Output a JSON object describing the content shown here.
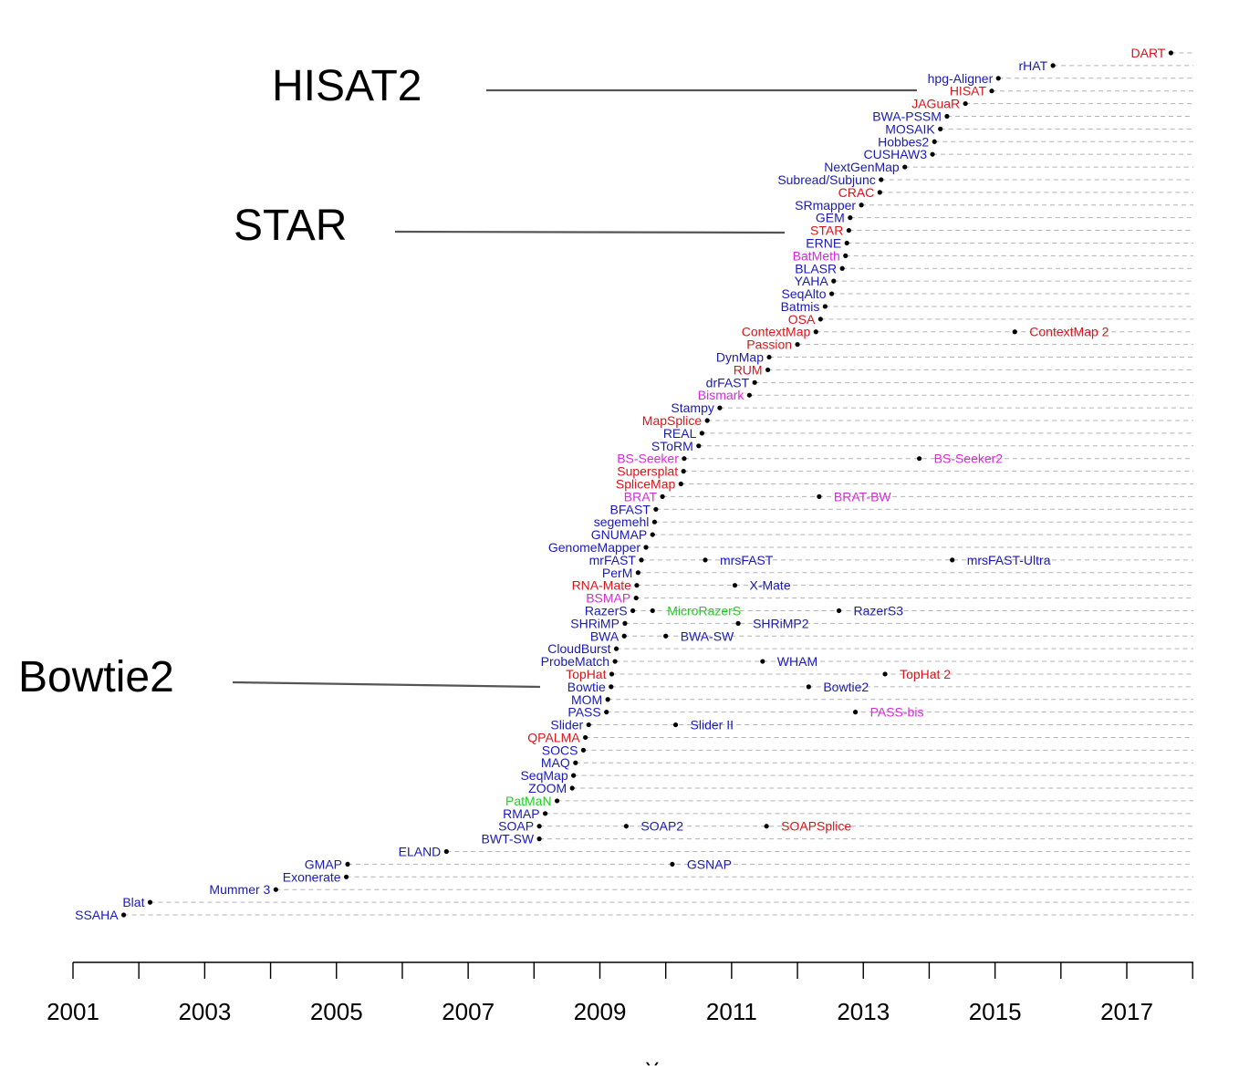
{
  "chart_data": {
    "type": "scatter",
    "title": "",
    "xlabel": "Year",
    "ylabel": "",
    "xlim": [
      2001,
      2018
    ],
    "x_ticks": [
      2001,
      2003,
      2005,
      2007,
      2009,
      2011,
      2013,
      2015,
      2017
    ],
    "grid": false,
    "colors": {
      "dna": "#1a1ab8",
      "rna": "#d9151b",
      "bisulfite": "#d82bd8",
      "microrna": "#22cc22",
      "timeline": "#b3b3b3",
      "pointer": "#555555"
    },
    "highlights": [
      {
        "label": "HISAT2",
        "row": 3
      },
      {
        "label": "STAR",
        "row": 14
      },
      {
        "label": "Bowtie2",
        "row": 50
      }
    ],
    "rows": [
      {
        "tools": [
          {
            "name": "DART",
            "x": 2017.67,
            "category": "rna"
          }
        ]
      },
      {
        "tools": [
          {
            "name": "rHAT",
            "x": 2015.88,
            "category": "dna"
          }
        ]
      },
      {
        "tools": [
          {
            "name": "hpg-Aligner",
            "x": 2015.05,
            "category": "dna"
          }
        ]
      },
      {
        "tools": [
          {
            "name": "HISAT",
            "x": 2014.95,
            "category": "rna"
          }
        ]
      },
      {
        "tools": [
          {
            "name": "JAGuaR",
            "x": 2014.55,
            "category": "rna"
          }
        ]
      },
      {
        "tools": [
          {
            "name": "BWA-PSSM",
            "x": 2014.27,
            "category": "dna"
          }
        ]
      },
      {
        "tools": [
          {
            "name": "MOSAIK",
            "x": 2014.17,
            "category": "dna"
          }
        ]
      },
      {
        "tools": [
          {
            "name": "Hobbes2",
            "x": 2014.08,
            "category": "dna"
          }
        ]
      },
      {
        "tools": [
          {
            "name": "CUSHAW3",
            "x": 2014.05,
            "category": "dna"
          }
        ]
      },
      {
        "tools": [
          {
            "name": "NextGenMap",
            "x": 2013.63,
            "category": "dna"
          }
        ]
      },
      {
        "tools": [
          {
            "name": "Subread/Subjunc",
            "x": 2013.27,
            "category": "dna"
          }
        ]
      },
      {
        "tools": [
          {
            "name": "CRAC",
            "x": 2013.25,
            "category": "rna"
          }
        ]
      },
      {
        "tools": [
          {
            "name": "SRmapper",
            "x": 2012.97,
            "category": "dna"
          }
        ]
      },
      {
        "tools": [
          {
            "name": "GEM",
            "x": 2012.8,
            "category": "dna"
          }
        ]
      },
      {
        "tools": [
          {
            "name": "STAR",
            "x": 2012.78,
            "category": "rna"
          }
        ]
      },
      {
        "tools": [
          {
            "name": "ERNE",
            "x": 2012.75,
            "category": "dna"
          }
        ]
      },
      {
        "tools": [
          {
            "name": "BatMeth",
            "x": 2012.73,
            "category": "bisulfite"
          }
        ]
      },
      {
        "tools": [
          {
            "name": "BLASR",
            "x": 2012.68,
            "category": "dna"
          }
        ]
      },
      {
        "tools": [
          {
            "name": "YAHA",
            "x": 2012.55,
            "category": "dna"
          }
        ]
      },
      {
        "tools": [
          {
            "name": "SeqAlto",
            "x": 2012.52,
            "category": "dna"
          }
        ]
      },
      {
        "tools": [
          {
            "name": "Batmis",
            "x": 2012.42,
            "category": "dna"
          }
        ]
      },
      {
        "tools": [
          {
            "name": "OSA",
            "x": 2012.35,
            "category": "rna"
          }
        ]
      },
      {
        "tools": [
          {
            "name": "ContextMap",
            "x": 2012.28,
            "category": "rna"
          },
          {
            "name": "ContextMap 2",
            "x": 2015.3,
            "category": "rna"
          }
        ]
      },
      {
        "tools": [
          {
            "name": "Passion",
            "x": 2012.0,
            "category": "rna"
          }
        ]
      },
      {
        "tools": [
          {
            "name": "DynMap",
            "x": 2011.57,
            "category": "dna"
          }
        ]
      },
      {
        "tools": [
          {
            "name": "RUM",
            "x": 2011.55,
            "category": "rna"
          }
        ]
      },
      {
        "tools": [
          {
            "name": "drFAST",
            "x": 2011.35,
            "category": "dna"
          }
        ]
      },
      {
        "tools": [
          {
            "name": "Bismark",
            "x": 2011.27,
            "category": "bisulfite"
          }
        ]
      },
      {
        "tools": [
          {
            "name": "Stampy",
            "x": 2010.82,
            "category": "dna"
          }
        ]
      },
      {
        "tools": [
          {
            "name": "MapSplice",
            "x": 2010.63,
            "category": "rna"
          }
        ]
      },
      {
        "tools": [
          {
            "name": "REAL",
            "x": 2010.55,
            "category": "dna"
          }
        ]
      },
      {
        "tools": [
          {
            "name": "SToRM",
            "x": 2010.5,
            "category": "dna"
          }
        ]
      },
      {
        "tools": [
          {
            "name": "BS-Seeker",
            "x": 2010.28,
            "category": "bisulfite"
          },
          {
            "name": "BS-Seeker2",
            "x": 2013.85,
            "category": "bisulfite"
          }
        ]
      },
      {
        "tools": [
          {
            "name": "Supersplat",
            "x": 2010.27,
            "category": "rna"
          }
        ]
      },
      {
        "tools": [
          {
            "name": "SpliceMap",
            "x": 2010.23,
            "category": "rna"
          }
        ]
      },
      {
        "tools": [
          {
            "name": "BRAT",
            "x": 2009.95,
            "category": "bisulfite"
          },
          {
            "name": "BRAT-BW",
            "x": 2012.33,
            "category": "bisulfite"
          }
        ]
      },
      {
        "tools": [
          {
            "name": "BFAST",
            "x": 2009.85,
            "category": "dna"
          }
        ]
      },
      {
        "tools": [
          {
            "name": "segemehl",
            "x": 2009.83,
            "category": "dna"
          }
        ]
      },
      {
        "tools": [
          {
            "name": "GNUMAP",
            "x": 2009.8,
            "category": "dna"
          }
        ]
      },
      {
        "tools": [
          {
            "name": "GenomeMapper",
            "x": 2009.7,
            "category": "dna"
          }
        ]
      },
      {
        "tools": [
          {
            "name": "mrFAST",
            "x": 2009.63,
            "category": "dna"
          },
          {
            "name": "mrsFAST",
            "x": 2010.6,
            "category": "dna"
          },
          {
            "name": "mrsFAST-Ultra",
            "x": 2014.35,
            "category": "dna"
          }
        ]
      },
      {
        "tools": [
          {
            "name": "PerM",
            "x": 2009.58,
            "category": "dna"
          }
        ]
      },
      {
        "tools": [
          {
            "name": "RNA-Mate",
            "x": 2009.56,
            "category": "rna"
          },
          {
            "name": "X-Mate",
            "x": 2011.05,
            "category": "dna"
          }
        ]
      },
      {
        "tools": [
          {
            "name": "BSMAP",
            "x": 2009.55,
            "category": "bisulfite"
          }
        ]
      },
      {
        "tools": [
          {
            "name": "RazerS",
            "x": 2009.5,
            "category": "dna"
          },
          {
            "name": "MicroRazerS",
            "x": 2009.8,
            "category": "microrna"
          },
          {
            "name": "RazerS3",
            "x": 2012.63,
            "category": "dna"
          }
        ]
      },
      {
        "tools": [
          {
            "name": "SHRiMP",
            "x": 2009.38,
            "category": "dna"
          },
          {
            "name": "SHRiMP2",
            "x": 2011.1,
            "category": "dna"
          }
        ]
      },
      {
        "tools": [
          {
            "name": "BWA",
            "x": 2009.37,
            "category": "dna"
          },
          {
            "name": "BWA-SW",
            "x": 2010.0,
            "category": "dna"
          }
        ]
      },
      {
        "tools": [
          {
            "name": "CloudBurst",
            "x": 2009.25,
            "category": "dna"
          }
        ]
      },
      {
        "tools": [
          {
            "name": "ProbeMatch",
            "x": 2009.23,
            "category": "dna"
          },
          {
            "name": "WHAM",
            "x": 2011.47,
            "category": "dna"
          }
        ]
      },
      {
        "tools": [
          {
            "name": "TopHat",
            "x": 2009.18,
            "category": "rna"
          },
          {
            "name": "TopHat 2",
            "x": 2013.33,
            "category": "rna"
          }
        ]
      },
      {
        "tools": [
          {
            "name": "Bowtie",
            "x": 2009.17,
            "category": "dna"
          },
          {
            "name": "Bowtie2",
            "x": 2012.17,
            "category": "dna"
          }
        ]
      },
      {
        "tools": [
          {
            "name": "MOM",
            "x": 2009.12,
            "category": "dna"
          }
        ]
      },
      {
        "tools": [
          {
            "name": "PASS",
            "x": 2009.1,
            "category": "dna"
          },
          {
            "name": "PASS-bis",
            "x": 2012.88,
            "category": "bisulfite"
          }
        ]
      },
      {
        "tools": [
          {
            "name": "Slider",
            "x": 2008.83,
            "category": "dna"
          },
          {
            "name": "Slider II",
            "x": 2010.15,
            "category": "dna"
          }
        ]
      },
      {
        "tools": [
          {
            "name": "QPALMA",
            "x": 2008.78,
            "category": "rna"
          }
        ]
      },
      {
        "tools": [
          {
            "name": "SOCS",
            "x": 2008.75,
            "category": "dna"
          }
        ]
      },
      {
        "tools": [
          {
            "name": "MAQ",
            "x": 2008.63,
            "category": "dna"
          }
        ]
      },
      {
        "tools": [
          {
            "name": "SeqMap",
            "x": 2008.6,
            "category": "dna"
          }
        ]
      },
      {
        "tools": [
          {
            "name": "ZOOM",
            "x": 2008.58,
            "category": "dna"
          }
        ]
      },
      {
        "tools": [
          {
            "name": "PatMaN",
            "x": 2008.35,
            "category": "microrna"
          }
        ]
      },
      {
        "tools": [
          {
            "name": "RMAP",
            "x": 2008.17,
            "category": "dna"
          }
        ]
      },
      {
        "tools": [
          {
            "name": "SOAP",
            "x": 2008.08,
            "category": "dna"
          },
          {
            "name": "SOAP2",
            "x": 2009.4,
            "category": "dna"
          },
          {
            "name": "SOAPSplice",
            "x": 2011.53,
            "category": "rna"
          }
        ]
      },
      {
        "tools": [
          {
            "name": "BWT-SW",
            "x": 2008.08,
            "category": "dna"
          }
        ]
      },
      {
        "tools": [
          {
            "name": "ELAND",
            "x": 2006.67,
            "category": "dna"
          }
        ]
      },
      {
        "tools": [
          {
            "name": "GMAP",
            "x": 2005.17,
            "category": "dna"
          },
          {
            "name": "GSNAP",
            "x": 2010.1,
            "category": "dna"
          }
        ]
      },
      {
        "tools": [
          {
            "name": "Exonerate",
            "x": 2005.15,
            "category": "dna"
          }
        ]
      },
      {
        "tools": [
          {
            "name": "Mummer 3",
            "x": 2004.08,
            "category": "dna"
          }
        ]
      },
      {
        "tools": [
          {
            "name": "Blat",
            "x": 2002.17,
            "category": "dna"
          }
        ]
      },
      {
        "tools": [
          {
            "name": "SSAHA",
            "x": 2001.77,
            "category": "dna"
          }
        ]
      }
    ]
  }
}
